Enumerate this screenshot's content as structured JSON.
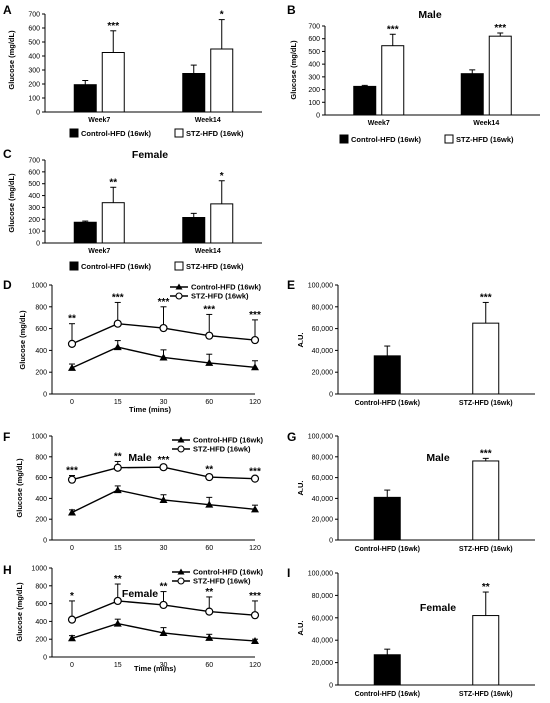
{
  "figure": {
    "panels": [
      {
        "letter": "A",
        "title": ""
      },
      {
        "letter": "B",
        "title": "Male"
      },
      {
        "letter": "C",
        "title": "Female"
      },
      {
        "letter": "D",
        "title": ""
      },
      {
        "letter": "E",
        "title": ""
      },
      {
        "letter": "F",
        "title": "Male"
      },
      {
        "letter": "G",
        "title": "Male"
      },
      {
        "letter": "H",
        "title": "Female"
      },
      {
        "letter": "I",
        "title": "Female"
      }
    ]
  },
  "chart_data": [
    {
      "panel": "A",
      "type": "bar",
      "title": "",
      "ylabel": "Glucose (mg/dL)",
      "xlabel": "",
      "ylim": [
        0,
        700
      ],
      "yticks": [
        0,
        100,
        200,
        300,
        400,
        500,
        600,
        700
      ],
      "categories": [
        "Week7",
        "Week14"
      ],
      "series": [
        {
          "name": "Control-HFD (16wk)",
          "color": "#000000",
          "values": [
            195,
            275
          ],
          "errors": [
            30,
            60
          ]
        },
        {
          "name": "STZ-HFD (16wk)",
          "color": "#ffffff",
          "values": [
            425,
            450
          ],
          "errors": [
            155,
            210
          ]
        }
      ],
      "significance": [
        "***",
        "*"
      ],
      "legend": "bottom"
    },
    {
      "panel": "B",
      "type": "bar",
      "title": "Male",
      "ylabel": "Glucose (mg/dL)",
      "xlabel": "",
      "ylim": [
        0,
        700
      ],
      "yticks": [
        0,
        100,
        200,
        300,
        400,
        500,
        600,
        700
      ],
      "categories": [
        "Week7",
        "Week14"
      ],
      "series": [
        {
          "name": "Control-HFD (16wk)",
          "color": "#000000",
          "values": [
            225,
            325
          ],
          "errors": [
            8,
            30
          ]
        },
        {
          "name": "STZ-HFD (16wk)",
          "color": "#ffffff",
          "values": [
            545,
            620
          ],
          "errors": [
            90,
            25
          ]
        }
      ],
      "significance": [
        "***",
        "***"
      ],
      "legend": "bottom"
    },
    {
      "panel": "C",
      "type": "bar",
      "title": "Female",
      "ylabel": "Glucose (mg/dL)",
      "xlabel": "",
      "ylim": [
        0,
        700
      ],
      "yticks": [
        0,
        100,
        200,
        300,
        400,
        500,
        600,
        700
      ],
      "categories": [
        "Week7",
        "Week14"
      ],
      "series": [
        {
          "name": "Control-HFD (16wk)",
          "color": "#000000",
          "values": [
            175,
            215
          ],
          "errors": [
            10,
            35
          ]
        },
        {
          "name": "STZ-HFD (16wk)",
          "color": "#ffffff",
          "values": [
            340,
            330
          ],
          "errors": [
            130,
            195
          ]
        }
      ],
      "significance": [
        "**",
        "*"
      ],
      "legend": "bottom"
    },
    {
      "panel": "D",
      "type": "line",
      "title": "",
      "ylabel": "Glucose (mg/dL)",
      "xlabel": "Time (mins)",
      "ylim": [
        0,
        1000
      ],
      "yticks": [
        0,
        200,
        400,
        600,
        800,
        1000
      ],
      "x": [
        "0",
        "15",
        "30",
        "60",
        "120"
      ],
      "series": [
        {
          "name": "Control-HFD (16wk)",
          "marker": "triangle",
          "values": [
            240,
            430,
            335,
            285,
            245
          ],
          "errors": [
            35,
            60,
            70,
            80,
            60
          ]
        },
        {
          "name": "STZ-HFD (16wk)",
          "marker": "circle-open",
          "values": [
            460,
            645,
            605,
            535,
            495
          ],
          "errors": [
            185,
            195,
            195,
            195,
            185
          ]
        }
      ],
      "significance": [
        "**",
        "***",
        "***",
        "***",
        "***"
      ],
      "legend": "top-right"
    },
    {
      "panel": "E",
      "type": "bar",
      "title": "",
      "ylabel": "A.U.",
      "xlabel": "",
      "ylim": [
        0,
        100000
      ],
      "yticks": [
        "0",
        "20,000",
        "40,000",
        "60,000",
        "80,000",
        "100,000"
      ],
      "categories": [
        "Control-HFD (16wk)",
        "STZ-HFD (16wk)"
      ],
      "values": [
        35000,
        65000
      ],
      "errors": [
        9000,
        19000
      ],
      "colors": [
        "#000000",
        "#ffffff"
      ],
      "significance": [
        "",
        "***"
      ]
    },
    {
      "panel": "F",
      "type": "line",
      "title": "Male",
      "ylabel": "Glucose (mg/dL)",
      "xlabel": "",
      "ylim": [
        0,
        1000
      ],
      "yticks": [
        0,
        200,
        400,
        600,
        800,
        1000
      ],
      "x": [
        "0",
        "15",
        "30",
        "60",
        "120"
      ],
      "series": [
        {
          "name": "Control-HFD (16wk)",
          "marker": "triangle",
          "values": [
            265,
            480,
            385,
            340,
            295
          ],
          "errors": [
            25,
            40,
            50,
            70,
            40
          ]
        },
        {
          "name": "STZ-HFD (16wk)",
          "marker": "circle-open",
          "values": [
            580,
            695,
            700,
            605,
            590
          ],
          "errors": [
            40,
            60,
            20,
            25,
            20
          ]
        }
      ],
      "significance": [
        "***",
        "**",
        "***",
        "**",
        "***"
      ],
      "legend": "top-right"
    },
    {
      "panel": "G",
      "type": "bar",
      "title": "Male",
      "ylabel": "A.U.",
      "xlabel": "",
      "ylim": [
        0,
        100000
      ],
      "yticks": [
        "0",
        "20,000",
        "40,000",
        "60,000",
        "80,000",
        "100,000"
      ],
      "categories": [
        "Control-HFD (16wk)",
        "STZ-HFD (16wk)"
      ],
      "values": [
        41000,
        76000
      ],
      "errors": [
        7000,
        2500
      ],
      "colors": [
        "#000000",
        "#ffffff"
      ],
      "significance": [
        "",
        "***"
      ]
    },
    {
      "panel": "H",
      "type": "line",
      "title": "Female",
      "ylabel": "Glucose (mg/dL)",
      "xlabel": "Time (mins)",
      "ylim": [
        0,
        1000
      ],
      "yticks": [
        0,
        200,
        400,
        600,
        800,
        1000
      ],
      "x": [
        "0",
        "15",
        "30",
        "60",
        "120"
      ],
      "series": [
        {
          "name": "Control-HFD (16wk)",
          "marker": "triangle",
          "values": [
            210,
            375,
            270,
            215,
            180
          ],
          "errors": [
            30,
            50,
            60,
            40,
            20
          ]
        },
        {
          "name": "STZ-HFD (16wk)",
          "marker": "circle-open",
          "values": [
            420,
            630,
            585,
            510,
            470
          ],
          "errors": [
            210,
            190,
            150,
            165,
            160
          ]
        }
      ],
      "significance": [
        "*",
        "**",
        "**",
        "**",
        "***"
      ],
      "legend": "top-right"
    },
    {
      "panel": "I",
      "type": "bar",
      "title": "Female",
      "ylabel": "A.U.",
      "xlabel": "",
      "ylim": [
        0,
        100000
      ],
      "yticks": [
        "0",
        "20,000",
        "40,000",
        "60,000",
        "80,000",
        "100,000"
      ],
      "categories": [
        "Control-HFD (16wk)",
        "STZ-HFD (16wk)"
      ],
      "values": [
        27000,
        62000
      ],
      "errors": [
        5000,
        21000
      ],
      "colors": [
        "#000000",
        "#ffffff"
      ],
      "significance": [
        "",
        "**"
      ]
    }
  ]
}
